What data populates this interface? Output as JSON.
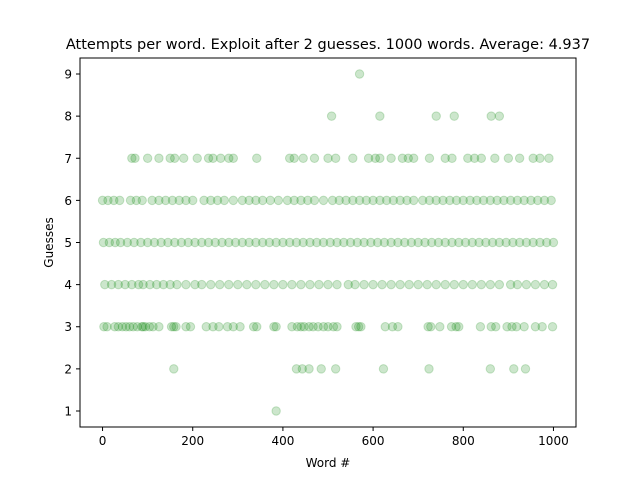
{
  "chart_data": {
    "type": "scatter",
    "title": "Attempts per word. Exploit after 2 guesses. 1000 words. Average: 4.937",
    "xlabel": "Word #",
    "ylabel": "Guesses",
    "xlim": [
      -50,
      1050
    ],
    "ylim": [
      0.62,
      9.38
    ],
    "xticks": [
      0,
      200,
      400,
      600,
      800,
      1000
    ],
    "yticks": [
      1,
      2,
      3,
      4,
      5,
      6,
      7,
      8,
      9
    ],
    "grid": false,
    "marker_color": "#008000",
    "marker_alpha": 0.2,
    "series": [
      {
        "points": [
          [
            385,
            1
          ],
          [
            158,
            2
          ],
          [
            430,
            2
          ],
          [
            443,
            2
          ],
          [
            458,
            2
          ],
          [
            485,
            2
          ],
          [
            517,
            2
          ],
          [
            623,
            2
          ],
          [
            724,
            2
          ],
          [
            860,
            2
          ],
          [
            912,
            2
          ],
          [
            938,
            2
          ],
          [
            3,
            3
          ],
          [
            10,
            3
          ],
          [
            27,
            3
          ],
          [
            35,
            3
          ],
          [
            44,
            3
          ],
          [
            52,
            3
          ],
          [
            60,
            3
          ],
          [
            68,
            3
          ],
          [
            77,
            3
          ],
          [
            87,
            3
          ],
          [
            90,
            3
          ],
          [
            95,
            3
          ],
          [
            104,
            3
          ],
          [
            112,
            3
          ],
          [
            125,
            3
          ],
          [
            153,
            3
          ],
          [
            158,
            3
          ],
          [
            163,
            3
          ],
          [
            185,
            3
          ],
          [
            195,
            3
          ],
          [
            230,
            3
          ],
          [
            245,
            3
          ],
          [
            258,
            3
          ],
          [
            277,
            3
          ],
          [
            290,
            3
          ],
          [
            305,
            3
          ],
          [
            335,
            3
          ],
          [
            342,
            3
          ],
          [
            380,
            3
          ],
          [
            385,
            3
          ],
          [
            420,
            3
          ],
          [
            432,
            3
          ],
          [
            440,
            3
          ],
          [
            447,
            3
          ],
          [
            458,
            3
          ],
          [
            467,
            3
          ],
          [
            478,
            3
          ],
          [
            490,
            3
          ],
          [
            500,
            3
          ],
          [
            512,
            3
          ],
          [
            520,
            3
          ],
          [
            562,
            3
          ],
          [
            568,
            3
          ],
          [
            573,
            3
          ],
          [
            627,
            3
          ],
          [
            643,
            3
          ],
          [
            655,
            3
          ],
          [
            722,
            3
          ],
          [
            728,
            3
          ],
          [
            748,
            3
          ],
          [
            774,
            3
          ],
          [
            784,
            3
          ],
          [
            790,
            3
          ],
          [
            838,
            3
          ],
          [
            862,
            3
          ],
          [
            872,
            3
          ],
          [
            897,
            3
          ],
          [
            908,
            3
          ],
          [
            918,
            3
          ],
          [
            935,
            3
          ],
          [
            960,
            3
          ],
          [
            975,
            3
          ],
          [
            998,
            3
          ],
          [
            5,
            4
          ],
          [
            20,
            4
          ],
          [
            35,
            4
          ],
          [
            50,
            4
          ],
          [
            65,
            4
          ],
          [
            80,
            4
          ],
          [
            90,
            4
          ],
          [
            105,
            4
          ],
          [
            120,
            4
          ],
          [
            135,
            4
          ],
          [
            150,
            4
          ],
          [
            165,
            4
          ],
          [
            185,
            4
          ],
          [
            205,
            4
          ],
          [
            220,
            4
          ],
          [
            240,
            4
          ],
          [
            260,
            4
          ],
          [
            280,
            4
          ],
          [
            300,
            4
          ],
          [
            320,
            4
          ],
          [
            340,
            4
          ],
          [
            360,
            4
          ],
          [
            380,
            4
          ],
          [
            400,
            4
          ],
          [
            420,
            4
          ],
          [
            440,
            4
          ],
          [
            460,
            4
          ],
          [
            480,
            4
          ],
          [
            500,
            4
          ],
          [
            520,
            4
          ],
          [
            545,
            4
          ],
          [
            560,
            4
          ],
          [
            580,
            4
          ],
          [
            600,
            4
          ],
          [
            620,
            4
          ],
          [
            640,
            4
          ],
          [
            660,
            4
          ],
          [
            680,
            4
          ],
          [
            700,
            4
          ],
          [
            720,
            4
          ],
          [
            740,
            4
          ],
          [
            760,
            4
          ],
          [
            780,
            4
          ],
          [
            800,
            4
          ],
          [
            820,
            4
          ],
          [
            840,
            4
          ],
          [
            860,
            4
          ],
          [
            880,
            4
          ],
          [
            905,
            4
          ],
          [
            920,
            4
          ],
          [
            940,
            4
          ],
          [
            960,
            4
          ],
          [
            980,
            4
          ],
          [
            998,
            4
          ],
          [
            2,
            5
          ],
          [
            15,
            5
          ],
          [
            28,
            5
          ],
          [
            40,
            5
          ],
          [
            55,
            5
          ],
          [
            70,
            5
          ],
          [
            85,
            5
          ],
          [
            100,
            5
          ],
          [
            115,
            5
          ],
          [
            130,
            5
          ],
          [
            145,
            5
          ],
          [
            160,
            5
          ],
          [
            175,
            5
          ],
          [
            190,
            5
          ],
          [
            205,
            5
          ],
          [
            220,
            5
          ],
          [
            235,
            5
          ],
          [
            250,
            5
          ],
          [
            265,
            5
          ],
          [
            280,
            5
          ],
          [
            295,
            5
          ],
          [
            310,
            5
          ],
          [
            325,
            5
          ],
          [
            340,
            5
          ],
          [
            355,
            5
          ],
          [
            370,
            5
          ],
          [
            385,
            5
          ],
          [
            400,
            5
          ],
          [
            415,
            5
          ],
          [
            430,
            5
          ],
          [
            445,
            5
          ],
          [
            460,
            5
          ],
          [
            475,
            5
          ],
          [
            490,
            5
          ],
          [
            505,
            5
          ],
          [
            520,
            5
          ],
          [
            535,
            5
          ],
          [
            550,
            5
          ],
          [
            565,
            5
          ],
          [
            580,
            5
          ],
          [
            595,
            5
          ],
          [
            610,
            5
          ],
          [
            625,
            5
          ],
          [
            640,
            5
          ],
          [
            655,
            5
          ],
          [
            670,
            5
          ],
          [
            685,
            5
          ],
          [
            700,
            5
          ],
          [
            715,
            5
          ],
          [
            730,
            5
          ],
          [
            745,
            5
          ],
          [
            760,
            5
          ],
          [
            775,
            5
          ],
          [
            790,
            5
          ],
          [
            805,
            5
          ],
          [
            820,
            5
          ],
          [
            835,
            5
          ],
          [
            850,
            5
          ],
          [
            865,
            5
          ],
          [
            880,
            5
          ],
          [
            895,
            5
          ],
          [
            910,
            5
          ],
          [
            925,
            5
          ],
          [
            940,
            5
          ],
          [
            955,
            5
          ],
          [
            970,
            5
          ],
          [
            985,
            5
          ],
          [
            1000,
            5
          ],
          [
            0,
            6
          ],
          [
            12,
            6
          ],
          [
            25,
            6
          ],
          [
            38,
            6
          ],
          [
            62,
            6
          ],
          [
            75,
            6
          ],
          [
            88,
            6
          ],
          [
            110,
            6
          ],
          [
            125,
            6
          ],
          [
            140,
            6
          ],
          [
            155,
            6
          ],
          [
            170,
            6
          ],
          [
            185,
            6
          ],
          [
            200,
            6
          ],
          [
            225,
            6
          ],
          [
            240,
            6
          ],
          [
            255,
            6
          ],
          [
            270,
            6
          ],
          [
            290,
            6
          ],
          [
            310,
            6
          ],
          [
            325,
            6
          ],
          [
            340,
            6
          ],
          [
            355,
            6
          ],
          [
            372,
            6
          ],
          [
            390,
            6
          ],
          [
            410,
            6
          ],
          [
            425,
            6
          ],
          [
            440,
            6
          ],
          [
            455,
            6
          ],
          [
            470,
            6
          ],
          [
            490,
            6
          ],
          [
            510,
            6
          ],
          [
            525,
            6
          ],
          [
            540,
            6
          ],
          [
            555,
            6
          ],
          [
            570,
            6
          ],
          [
            585,
            6
          ],
          [
            600,
            6
          ],
          [
            615,
            6
          ],
          [
            630,
            6
          ],
          [
            645,
            6
          ],
          [
            660,
            6
          ],
          [
            675,
            6
          ],
          [
            690,
            6
          ],
          [
            710,
            6
          ],
          [
            725,
            6
          ],
          [
            740,
            6
          ],
          [
            755,
            6
          ],
          [
            770,
            6
          ],
          [
            785,
            6
          ],
          [
            800,
            6
          ],
          [
            815,
            6
          ],
          [
            830,
            6
          ],
          [
            845,
            6
          ],
          [
            860,
            6
          ],
          [
            875,
            6
          ],
          [
            890,
            6
          ],
          [
            905,
            6
          ],
          [
            920,
            6
          ],
          [
            935,
            6
          ],
          [
            950,
            6
          ],
          [
            965,
            6
          ],
          [
            980,
            6
          ],
          [
            995,
            6
          ],
          [
            65,
            7
          ],
          [
            72,
            7
          ],
          [
            100,
            7
          ],
          [
            125,
            7
          ],
          [
            150,
            7
          ],
          [
            160,
            7
          ],
          [
            180,
            7
          ],
          [
            210,
            7
          ],
          [
            235,
            7
          ],
          [
            245,
            7
          ],
          [
            262,
            7
          ],
          [
            280,
            7
          ],
          [
            290,
            7
          ],
          [
            342,
            7
          ],
          [
            415,
            7
          ],
          [
            425,
            7
          ],
          [
            445,
            7
          ],
          [
            470,
            7
          ],
          [
            500,
            7
          ],
          [
            517,
            7
          ],
          [
            555,
            7
          ],
          [
            590,
            7
          ],
          [
            605,
            7
          ],
          [
            615,
            7
          ],
          [
            640,
            7
          ],
          [
            665,
            7
          ],
          [
            678,
            7
          ],
          [
            690,
            7
          ],
          [
            725,
            7
          ],
          [
            760,
            7
          ],
          [
            775,
            7
          ],
          [
            810,
            7
          ],
          [
            825,
            7
          ],
          [
            840,
            7
          ],
          [
            870,
            7
          ],
          [
            900,
            7
          ],
          [
            925,
            7
          ],
          [
            955,
            7
          ],
          [
            970,
            7
          ],
          [
            990,
            7
          ],
          [
            508,
            8
          ],
          [
            615,
            8
          ],
          [
            740,
            8
          ],
          [
            780,
            8
          ],
          [
            862,
            8
          ],
          [
            880,
            8
          ],
          [
            570,
            9
          ]
        ]
      }
    ]
  }
}
